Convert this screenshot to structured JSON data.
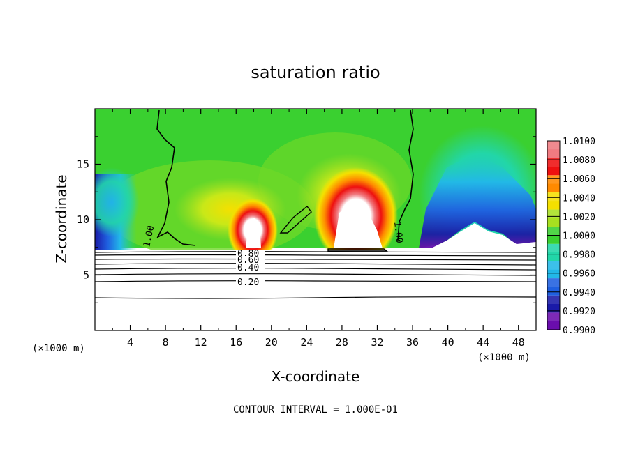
{
  "chart_data": {
    "type": "heatmap",
    "title": "saturation ratio",
    "xlabel": "X-coordinate",
    "ylabel": "Z-coordinate",
    "x_unit_left": "(×1000 m)",
    "x_unit_right": "(×1000 m)",
    "xlim": [
      0,
      50
    ],
    "ylim": [
      0,
      20
    ],
    "x_ticks": [
      "4",
      "8",
      "12",
      "16",
      "20",
      "24",
      "28",
      "32",
      "36",
      "40",
      "44",
      "48"
    ],
    "y_ticks": [
      "5",
      "10",
      "15"
    ],
    "colorbar": {
      "levels": [
        "0.9900",
        "0.9920",
        "0.9940",
        "0.9960",
        "0.9980",
        "1.0000",
        "1.0020",
        "1.0040",
        "1.0060",
        "1.0080",
        "1.0100"
      ],
      "colors": [
        "#6a0dad",
        "#1a1aa8",
        "#1f5fe0",
        "#22b8e8",
        "#22d6a8",
        "#3ad030",
        "#a8e020",
        "#f4e000",
        "#ff8a00",
        "#ee1010",
        "#f07a80"
      ]
    },
    "contour_labels": [
      "1.00",
      "1.00",
      "0.80",
      "0.60",
      "0.40",
      "0.20"
    ],
    "footer": "CONTOUR INTERVAL = 1.000E-01"
  }
}
